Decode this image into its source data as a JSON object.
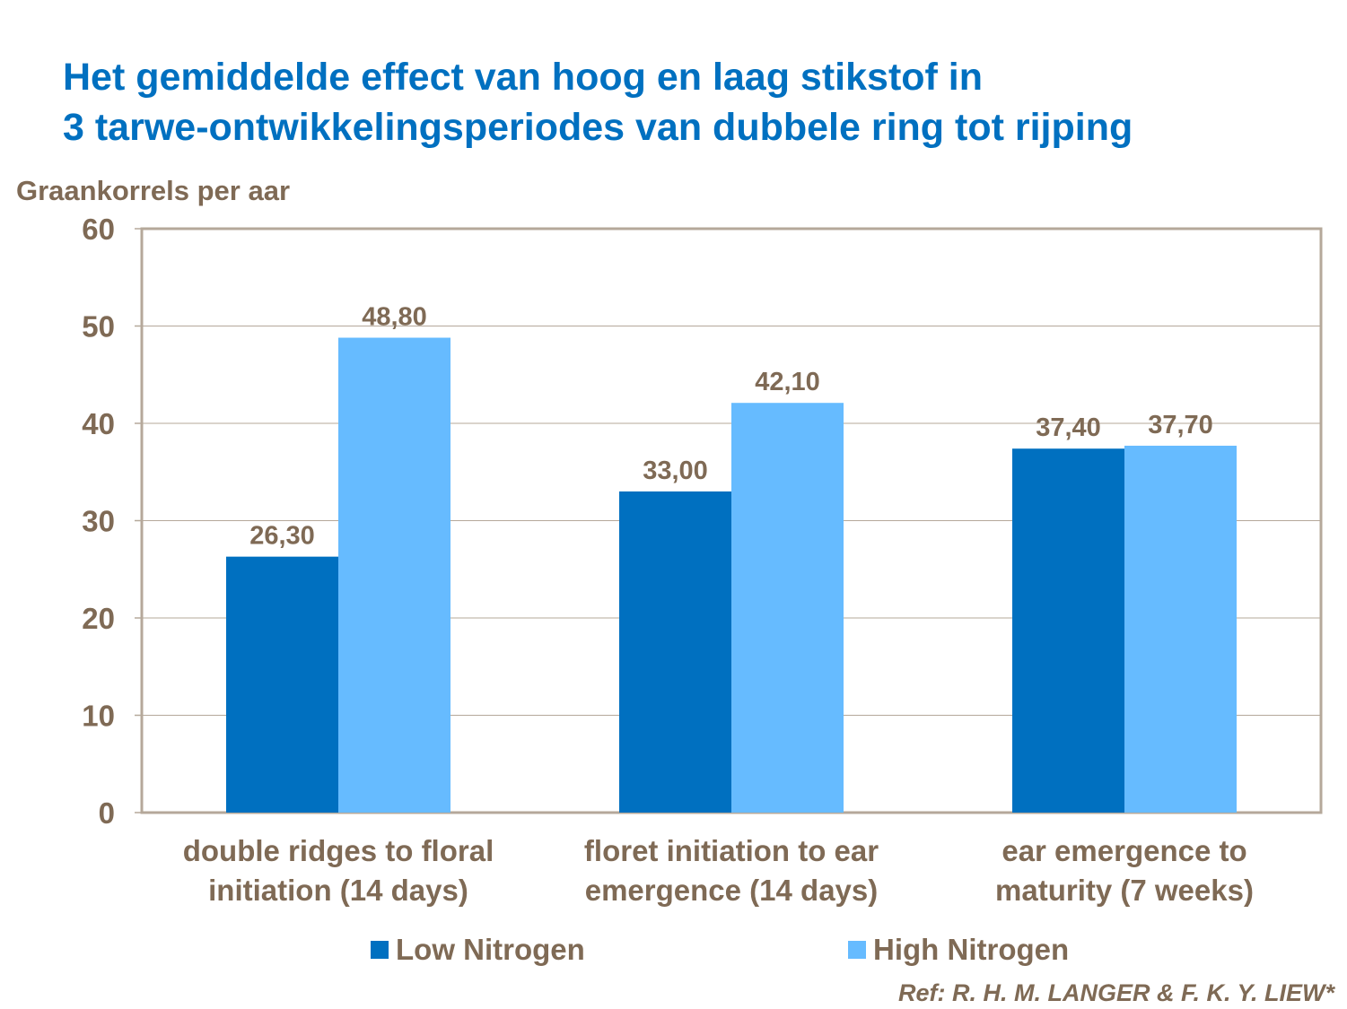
{
  "chart_data": {
    "type": "bar",
    "title": "Het gemiddelde effect van hoog en laag stikstof in 3 tarwe-ontwikkelingsperiodes van dubbele ring tot rijping",
    "title_lines": [
      "Het gemiddelde effect van hoog en laag stikstof in",
      "3 tarwe-ontwikkelingsperiodes van dubbele ring tot rijping"
    ],
    "ylabel": "Graankorrels per aar",
    "xlabel": "",
    "ylim": [
      0,
      60
    ],
    "yticks": [
      0,
      10,
      20,
      30,
      40,
      50,
      60
    ],
    "grid": true,
    "legend_position": "bottom",
    "categories": [
      [
        "double ridges to floral",
        "initiation (14 days)"
      ],
      [
        "floret initiation to ear",
        "emergence (14 days)"
      ],
      [
        "ear emergence to",
        "maturity (7 weeks)"
      ]
    ],
    "series": [
      {
        "name": "Low Nitrogen",
        "color": "#0070c0",
        "values": [
          26.3,
          33.0,
          37.4
        ],
        "labels": [
          "26,30",
          "33,00",
          "37,40"
        ]
      },
      {
        "name": "High Nitrogen",
        "color": "#66bbff",
        "values": [
          48.8,
          42.1,
          37.7
        ],
        "labels": [
          "48,80",
          "42,10",
          "37,70"
        ]
      }
    ]
  },
  "reference": "Ref: R. H. M. LANGER & F. K. Y. LIEW*"
}
